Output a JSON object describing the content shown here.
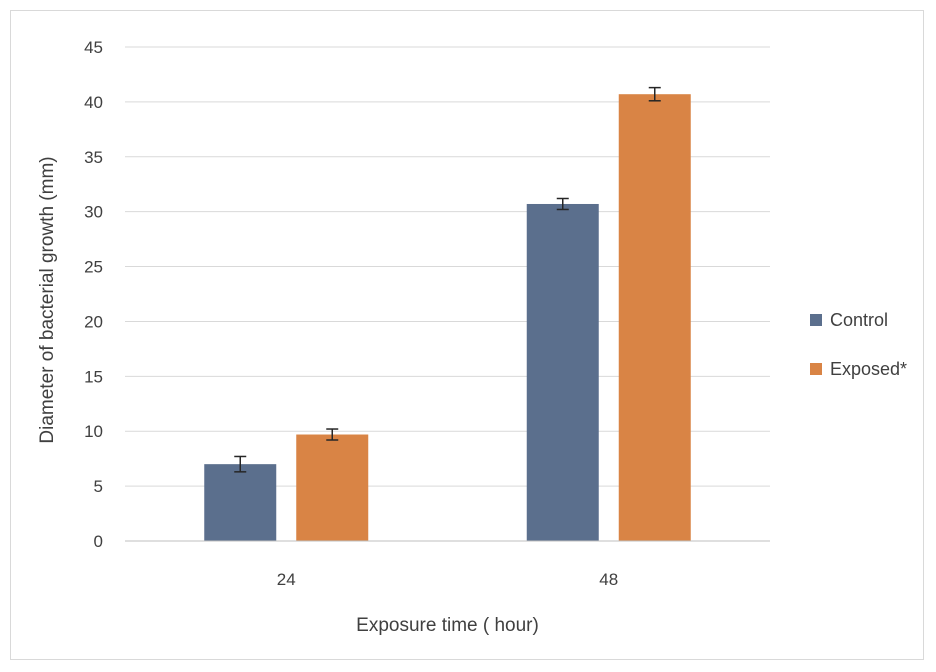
{
  "chart_data": {
    "type": "bar",
    "categories": [
      "24",
      "48"
    ],
    "series": [
      {
        "name": "Control",
        "color": "#5b6f8d",
        "values": [
          7.0,
          30.7
        ],
        "errors": [
          0.7,
          0.5
        ]
      },
      {
        "name": "Exposed*",
        "color": "#d98445",
        "values": [
          9.7,
          40.7
        ],
        "errors": [
          0.5,
          0.6
        ]
      }
    ],
    "xlabel": "Exposure time ( hour)",
    "ylabel": "Diameter of bacterial growth (mm)",
    "ylim": [
      0,
      45
    ],
    "yticks": [
      0,
      5,
      10,
      15,
      20,
      25,
      30,
      35,
      40,
      45
    ],
    "grid": true,
    "legend_position": "right"
  }
}
